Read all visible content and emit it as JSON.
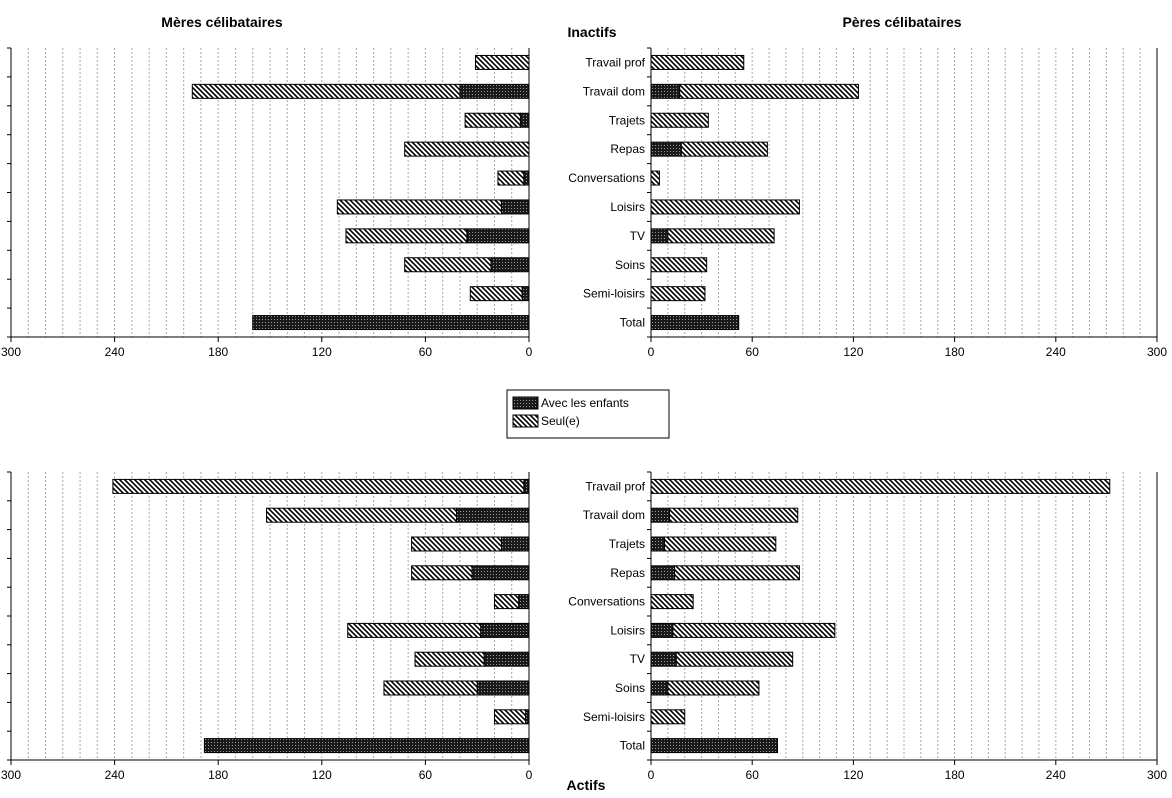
{
  "chart_data": {
    "type": "bar",
    "orientation": "horizontal-stacked",
    "categories": [
      "Travail prof",
      "Travail dom",
      "Trajets",
      "Repas",
      "Conversations",
      "Loisirs",
      "TV",
      "Soins",
      "Semi-loisirs",
      "Total"
    ],
    "xlim": [
      0,
      300
    ],
    "xticks": [
      0,
      60,
      120,
      180,
      240,
      300
    ],
    "grid": true,
    "legend": {
      "position": "center",
      "entries": [
        {
          "name": "Avec les enfants",
          "pattern": "dense-cross"
        },
        {
          "name": "Seul(e)",
          "pattern": "diagonal-hatch"
        }
      ]
    },
    "group_titles": {
      "top": "Inactifs",
      "bottom": "Actifs"
    },
    "panels": [
      {
        "title": "Mères célibataires",
        "group": "Inactifs",
        "direction": "left",
        "series": [
          {
            "name": "Avec les enfants",
            "values": [
              0,
              40,
              5,
              0,
              3,
              16,
              36,
              22,
              4,
              160
            ]
          },
          {
            "name": "Seul(e)",
            "values": [
              31,
              155,
              32,
              72,
              15,
              95,
              70,
              50,
              30,
              0
            ]
          }
        ]
      },
      {
        "title": "Pères célibataires",
        "group": "Inactifs",
        "direction": "right",
        "series": [
          {
            "name": "Avec les enfants",
            "values": [
              0,
              17,
              0,
              18,
              0,
              0,
              10,
              0,
              0,
              52
            ]
          },
          {
            "name": "Seul(e)",
            "values": [
              55,
              106,
              34,
              51,
              5,
              88,
              63,
              33,
              32,
              0
            ]
          }
        ]
      },
      {
        "title": "",
        "group": "Actifs",
        "direction": "left",
        "series": [
          {
            "name": "Avec les enfants",
            "values": [
              3,
              42,
              16,
              33,
              6,
              28,
              26,
              30,
              2,
              188
            ]
          },
          {
            "name": "Seul(e)",
            "values": [
              238,
              110,
              52,
              35,
              14,
              77,
              40,
              54,
              18,
              0
            ]
          }
        ]
      },
      {
        "title": "",
        "group": "Actifs",
        "direction": "right",
        "series": [
          {
            "name": "Avec les enfants",
            "values": [
              0,
              11,
              8,
              14,
              0,
              13,
              15,
              10,
              0,
              75
            ]
          },
          {
            "name": "Seul(e)",
            "values": [
              272,
              76,
              66,
              74,
              25,
              96,
              69,
              54,
              20,
              0
            ]
          }
        ]
      }
    ]
  }
}
